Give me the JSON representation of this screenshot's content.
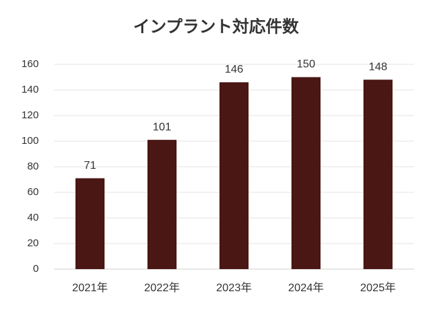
{
  "chart_data": {
    "type": "bar",
    "title": "インプラント対応件数",
    "categories": [
      "2021年",
      "2022年",
      "2023年",
      "2024年",
      "2025年"
    ],
    "values": [
      71,
      101,
      146,
      150,
      148
    ],
    "color": "#4a1714",
    "ylim": [
      0,
      160
    ],
    "yticks": [
      0,
      20,
      40,
      60,
      80,
      100,
      120,
      140,
      160
    ],
    "grid": true
  }
}
